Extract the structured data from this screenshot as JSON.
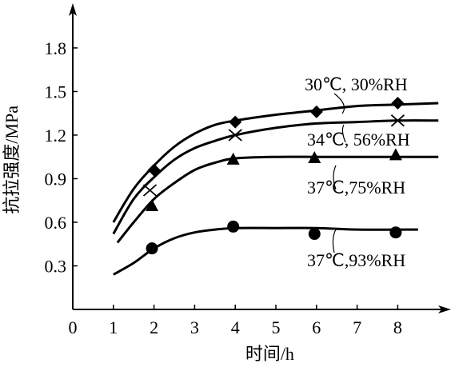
{
  "chart_data": {
    "type": "scatter",
    "xlabel": "时间/h",
    "ylabel": "抗拉强度/MPa",
    "xlim": [
      0,
      9
    ],
    "ylim": [
      0,
      2.1
    ],
    "x_ticks": [
      "0",
      "1",
      "2",
      "3",
      "4",
      "5",
      "6",
      "7",
      "8"
    ],
    "y_ticks": [
      "0.3",
      "0.6",
      "0.9",
      "1.2",
      "1.5",
      "1.8"
    ],
    "grid": false,
    "legend": "none",
    "series": [
      {
        "name": "30℃, 30%RH",
        "marker": "diamond",
        "points": [
          [
            2,
            0.96
          ],
          [
            4,
            1.29
          ],
          [
            6,
            1.36
          ],
          [
            8,
            1.42
          ]
        ],
        "curve": [
          [
            1.0,
            0.6
          ],
          [
            1.5,
            0.83
          ],
          [
            2.0,
            0.99
          ],
          [
            2.5,
            1.12
          ],
          [
            3.0,
            1.21
          ],
          [
            3.5,
            1.27
          ],
          [
            4.0,
            1.3
          ],
          [
            5.0,
            1.34
          ],
          [
            6.0,
            1.37
          ],
          [
            7.0,
            1.4
          ],
          [
            8.0,
            1.41
          ],
          [
            9.0,
            1.42
          ]
        ]
      },
      {
        "name": "34℃, 56%RH",
        "marker": "x",
        "points": [
          [
            1.9,
            0.82
          ],
          [
            4,
            1.2
          ],
          [
            8,
            1.3
          ]
        ],
        "curve": [
          [
            1.0,
            0.52
          ],
          [
            1.5,
            0.76
          ],
          [
            2.0,
            0.91
          ],
          [
            2.5,
            1.03
          ],
          [
            3.0,
            1.11
          ],
          [
            3.5,
            1.16
          ],
          [
            4.0,
            1.2
          ],
          [
            5.0,
            1.25
          ],
          [
            6.0,
            1.28
          ],
          [
            7.0,
            1.29
          ],
          [
            8.0,
            1.3
          ],
          [
            9.0,
            1.3
          ]
        ]
      },
      {
        "name": "37℃,75%RH",
        "marker": "triangle",
        "points": [
          [
            1.95,
            0.71
          ],
          [
            3.95,
            1.03
          ],
          [
            5.95,
            1.04
          ],
          [
            7.95,
            1.06
          ]
        ],
        "curve": [
          [
            1.1,
            0.46
          ],
          [
            1.5,
            0.6
          ],
          [
            2.0,
            0.76
          ],
          [
            2.5,
            0.87
          ],
          [
            3.0,
            0.96
          ],
          [
            3.5,
            1.01
          ],
          [
            4.0,
            1.04
          ],
          [
            5.0,
            1.05
          ],
          [
            6.0,
            1.05
          ],
          [
            7.0,
            1.05
          ],
          [
            9.0,
            1.05
          ]
        ]
      },
      {
        "name": "37℃,93%RH",
        "marker": "circle",
        "points": [
          [
            1.95,
            0.42
          ],
          [
            3.95,
            0.57
          ],
          [
            5.95,
            0.52
          ],
          [
            7.95,
            0.53
          ]
        ],
        "curve": [
          [
            1.0,
            0.24
          ],
          [
            1.5,
            0.32
          ],
          [
            2.0,
            0.42
          ],
          [
            2.5,
            0.49
          ],
          [
            3.0,
            0.53
          ],
          [
            3.5,
            0.55
          ],
          [
            4.0,
            0.56
          ],
          [
            5.0,
            0.56
          ],
          [
            6.0,
            0.56
          ],
          [
            7.0,
            0.55
          ],
          [
            8.5,
            0.55
          ]
        ]
      }
    ]
  }
}
